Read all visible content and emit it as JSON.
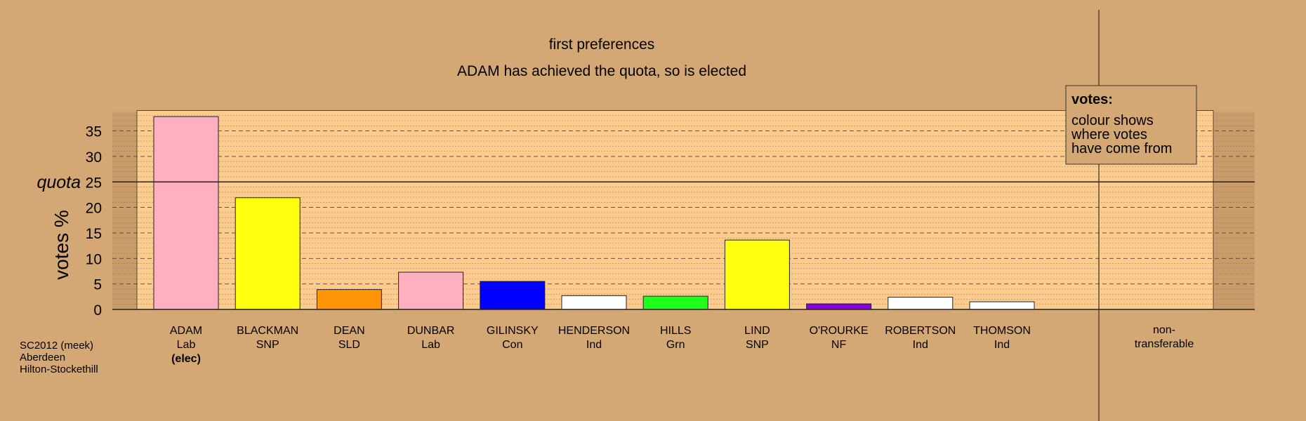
{
  "chart_data": {
    "type": "bar",
    "title": "first preferences",
    "subtitle": "ADAM has achieved the quota, so is elected",
    "ylabel": "votes %",
    "ylim": [
      0,
      40
    ],
    "yticks": [
      0,
      5,
      10,
      15,
      20,
      25,
      30,
      35
    ],
    "grid": true,
    "quota": {
      "value": 25,
      "label": "quota"
    },
    "categories": [
      "ADAM",
      "BLACKMAN",
      "DEAN",
      "DUNBAR",
      "GILINSKY",
      "HENDERSON",
      "HILLS",
      "LIND",
      "O'ROURKE",
      "ROBERTSON",
      "THOMSON"
    ],
    "parties": [
      "Lab",
      "SNP",
      "SLD",
      "Lab",
      "Con",
      "Ind",
      "Grn",
      "SNP",
      "NF",
      "Ind",
      "Ind"
    ],
    "status": [
      "(elec)",
      "",
      "",
      "",
      "",
      "",
      "",
      "",
      "",
      "",
      ""
    ],
    "values": [
      37.8,
      21.9,
      3.9,
      7.3,
      5.5,
      2.7,
      2.6,
      13.6,
      1.1,
      2.4,
      1.5
    ],
    "colors": [
      "#FFB0C0",
      "#FFFF10",
      "#FF9408",
      "#FFB0C0",
      "#0000FF",
      "#FFFFFF",
      "#1EFF1E",
      "#FFFF10",
      "#8A00E0",
      "#FFFFFF",
      "#FFFFFF"
    ],
    "nontransferable": {
      "label_line1": "non-",
      "label_line2": "transferable",
      "value": 0
    },
    "legend": {
      "title": "votes:",
      "lines": [
        "colour shows",
        "where votes",
        "have come from"
      ],
      "position": "top-right"
    }
  },
  "footnote": [
    "SC2012 (meek)",
    "Aberdeen",
    "Hilton-Stockethill"
  ],
  "colors": {
    "background": "#D4A874",
    "plot_area": "#FCCB8E",
    "side_area": "#C99C6A"
  }
}
